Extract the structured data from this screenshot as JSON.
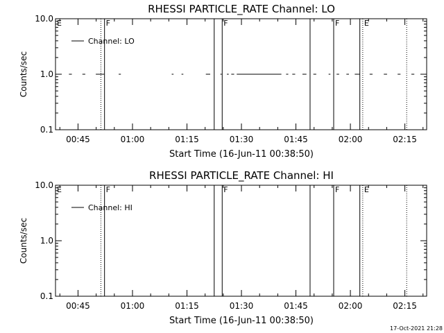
{
  "footer": {
    "timestamp": "17-Oct-2021 21:28"
  },
  "chart_data": [
    {
      "type": "line",
      "title": "RHESSI PARTICLE_RATE Channel: LO",
      "xlabel": "Start Time (16-Jun-11 00:38:50)",
      "ylabel": "Counts/sec",
      "yscale": "log",
      "ylim": [
        0.1,
        10.0
      ],
      "xlim_minutes": [
        38.8,
        141.0
      ],
      "x_tick_labels": [
        "00:45",
        "01:00",
        "01:15",
        "01:30",
        "01:45",
        "02:00",
        "02:15"
      ],
      "y_tick_labels": [
        "0.1",
        "1.0",
        "10.0"
      ],
      "legend": {
        "placement": "top-left",
        "label": "Channel: LO"
      },
      "series": [
        {
          "name": "Channel: LO",
          "value": 1.0,
          "segments_minutes": [
            [
              38.8,
              39.6
            ],
            [
              42.5,
              43.3
            ],
            [
              46.2,
              47.0
            ],
            [
              49.9,
              52.2
            ],
            [
              56.2,
              56.8
            ],
            [
              70.8,
              71.3
            ],
            [
              73.5,
              74.0
            ],
            [
              80.2,
              81.4
            ],
            [
              84.2,
              84.6
            ],
            [
              86.0,
              86.5
            ],
            [
              87.2,
              88.0
            ],
            [
              88.7,
              101.0
            ],
            [
              102.3,
              102.9
            ],
            [
              104.0,
              104.8
            ],
            [
              106.8,
              107.9
            ],
            [
              109.8,
              110.6
            ],
            [
              114.0,
              114.5
            ],
            [
              116.2,
              116.9
            ],
            [
              118.9,
              119.6
            ],
            [
              121.2,
              122.5
            ],
            [
              125.3,
              126.1
            ],
            [
              129.2,
              130.1
            ],
            [
              133.0,
              133.8
            ],
            [
              136.8,
              137.6
            ],
            [
              139.9,
              140.7
            ]
          ]
        }
      ],
      "vertical_lines": [
        {
          "x_minutes": 51.3,
          "style": "dotted",
          "label": ""
        },
        {
          "x_minutes": 52.3,
          "style": "solid",
          "label": "F"
        },
        {
          "x_minutes": 82.5,
          "style": "solid",
          "label": ""
        },
        {
          "x_minutes": 84.7,
          "style": "solid",
          "label": "F"
        },
        {
          "x_minutes": 108.9,
          "style": "solid",
          "label": ""
        },
        {
          "x_minutes": 115.4,
          "style": "solid",
          "label": "F"
        },
        {
          "x_minutes": 122.6,
          "style": "solid",
          "label": ""
        },
        {
          "x_minutes": 123.4,
          "style": "dotted",
          "label": "E"
        },
        {
          "x_minutes": 135.5,
          "style": "dotted",
          "label": ""
        }
      ],
      "left_edge_label": "E"
    },
    {
      "type": "line",
      "title": "RHESSI PARTICLE_RATE Channel: HI",
      "xlabel": "Start Time (16-Jun-11 00:38:50)",
      "ylabel": "Counts/sec",
      "yscale": "log",
      "ylim": [
        0.1,
        10.0
      ],
      "xlim_minutes": [
        38.8,
        141.0
      ],
      "x_tick_labels": [
        "00:45",
        "01:00",
        "01:15",
        "01:30",
        "01:45",
        "02:00",
        "02:15"
      ],
      "y_tick_labels": [
        "0.1",
        "1.0",
        "10.0"
      ],
      "legend": {
        "placement": "top-left",
        "label": "Channel: HI"
      },
      "series": [
        {
          "name": "Channel: HI",
          "value": null,
          "segments_minutes": []
        }
      ],
      "vertical_lines": [
        {
          "x_minutes": 51.3,
          "style": "dotted",
          "label": ""
        },
        {
          "x_minutes": 52.3,
          "style": "solid",
          "label": "F"
        },
        {
          "x_minutes": 82.5,
          "style": "solid",
          "label": ""
        },
        {
          "x_minutes": 84.7,
          "style": "solid",
          "label": "F"
        },
        {
          "x_minutes": 108.9,
          "style": "solid",
          "label": ""
        },
        {
          "x_minutes": 115.4,
          "style": "solid",
          "label": "F"
        },
        {
          "x_minutes": 122.6,
          "style": "solid",
          "label": ""
        },
        {
          "x_minutes": 123.4,
          "style": "dotted",
          "label": "E"
        },
        {
          "x_minutes": 135.5,
          "style": "dotted",
          "label": ""
        }
      ],
      "left_edge_label": "E"
    }
  ]
}
